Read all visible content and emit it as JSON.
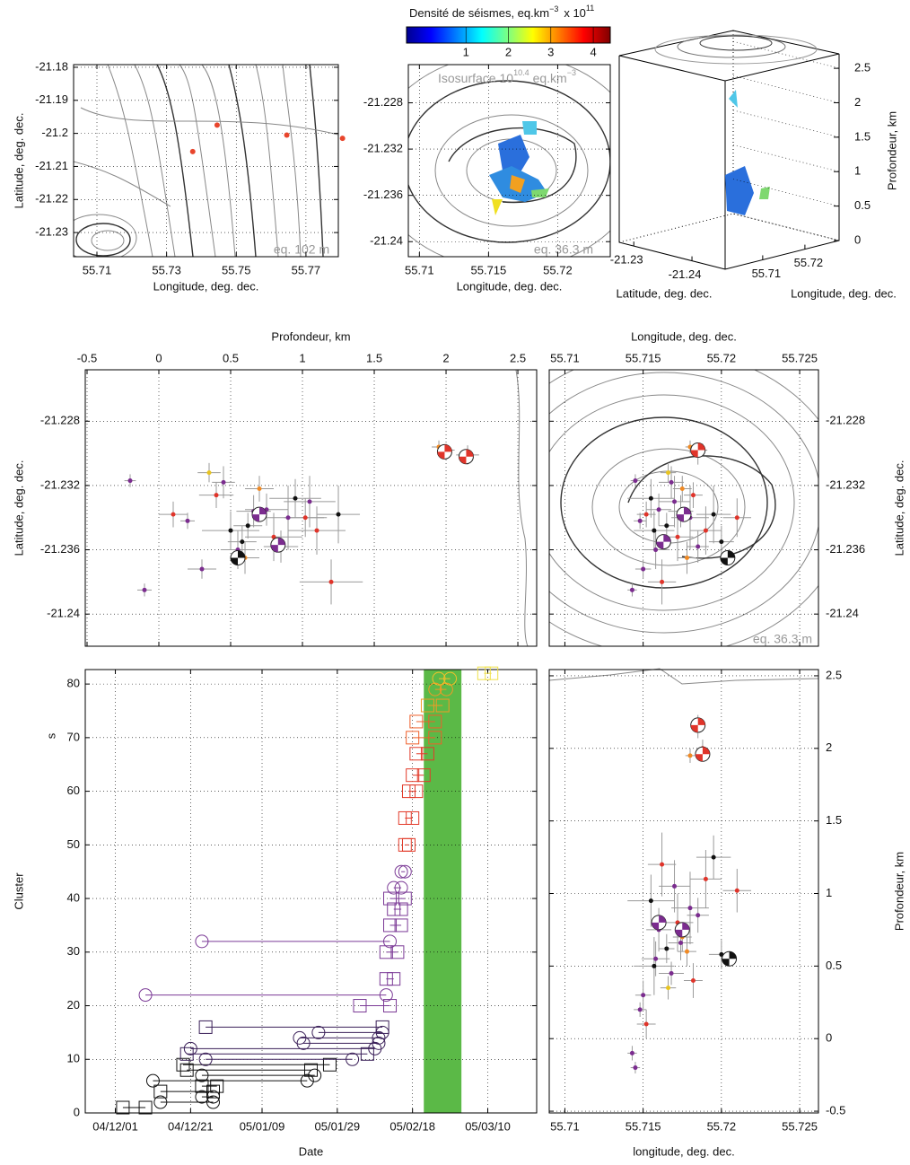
{
  "chart_data": [
    {
      "type": "map",
      "xlabel": "Longitude, deg. dec.",
      "ylabel": "Latitude, deg. dec.",
      "annotation": "eq. 102 m",
      "xlim": [
        55.7033,
        55.7793
      ],
      "ylim": [
        -21.2373,
        -21.1792
      ],
      "xticks": [
        55.71,
        55.73,
        55.75,
        55.77
      ],
      "yticks": [
        -21.18,
        -21.19,
        -21.2,
        -21.21,
        -21.22,
        -21.23
      ],
      "grid": true,
      "x": [
        55.7375,
        55.7445,
        55.7645,
        55.7805
      ],
      "values": [
        -21.2055,
        -21.1975,
        -21.2005,
        -21.2015
      ],
      "color": "#e8452c"
    },
    {
      "type": "density-map",
      "xlabel": "Longitude, deg. dec.",
      "annotation": "eq. 36.3 m",
      "iso_label": "Isosurface 10",
      "iso_exp": "10.4",
      "iso_unit": "eq.km",
      "iso_unit_exp": "−3",
      "xlim": [
        55.7092,
        55.7238
      ],
      "ylim": [
        -21.2413,
        -21.2247
      ],
      "xticks": [
        55.71,
        55.715,
        55.72
      ],
      "yticks": [
        -21.228,
        -21.232,
        -21.236,
        -21.24
      ],
      "grid": true,
      "colorbar": {
        "label": "Densité de séismes, eq.km",
        "label_exp": "−3",
        "multiplier": "x 10",
        "multiplier_exp": "11",
        "clim": [
          -0.4,
          4.4
        ],
        "ticks": [
          1,
          2,
          3,
          4
        ]
      }
    },
    {
      "type": "3d",
      "xlabel": "Latitude, deg. dec.",
      "ylabel": "Longitude, deg. dec.",
      "zlabel": "Profondeur, km",
      "xlim": [
        -21.2275,
        -21.2457
      ],
      "xticks": [
        -21.23,
        -21.24
      ],
      "ylim": [
        55.7011,
        55.7281
      ],
      "yticks": [
        55.71,
        55.72
      ],
      "zlim": [
        0,
        2.71
      ],
      "zticks": [
        0,
        0.5,
        1,
        1.5,
        2,
        2.5
      ]
    },
    {
      "type": "scatter",
      "xlabel": "Profondeur, km",
      "ylabel": "Latitude, deg. dec.",
      "xlim": [
        -0.5125,
        2.631
      ],
      "ylim": [
        -21.242,
        -21.2248
      ],
      "xticks": [
        -0.5,
        0,
        0.5,
        1,
        1.5,
        2,
        2.5
      ],
      "yticks": [
        -21.228,
        -21.232,
        -21.236,
        -21.24
      ],
      "grid": true,
      "x": [
        0.75,
        0.62,
        0.8,
        0.55,
        0.9,
        0.7,
        0.45,
        0.95,
        1.1,
        0.85,
        1.25,
        0.3,
        1.2,
        0.6,
        0.2,
        1.05,
        0.58,
        0.4,
        0.5,
        0.35,
        2.0,
        2.15,
        1.95,
        -0.1,
        -0.2,
        1.02,
        0.1,
        0.66
      ],
      "values": [
        -21.2335,
        -21.2345,
        -21.2352,
        -21.236,
        -21.234,
        -21.2322,
        -21.2318,
        -21.2328,
        -21.2348,
        -21.2358,
        -21.2338,
        -21.2372,
        -21.238,
        -21.2365,
        -21.2342,
        -21.233,
        -21.2355,
        -21.2326,
        -21.2348,
        -21.2312,
        -21.2298,
        -21.2301,
        -21.2296,
        -21.2385,
        -21.2317,
        -21.234,
        -21.2338,
        -21.2336
      ],
      "xerr": [
        0.15,
        0.1,
        0.2,
        0.12,
        0.25,
        0.1,
        0.08,
        0.18,
        0.2,
        0.12,
        0.15,
        0.1,
        0.22,
        0.1,
        0.05,
        0.18,
        0.1,
        0.12,
        0.2,
        0.08,
        0.06,
        0.08,
        0.05,
        0.05,
        0.04,
        0.15,
        0.1,
        0.12
      ],
      "yerr": [
        0.001,
        0.0008,
        0.0015,
        0.0012,
        0.002,
        0.0008,
        0.001,
        0.0012,
        0.0015,
        0.001,
        0.0018,
        0.0006,
        0.0014,
        0.001,
        0.0005,
        0.0016,
        0.001,
        0.0008,
        0.0012,
        0.0006,
        0.0004,
        0.0006,
        0.0004,
        0.0004,
        0.0004,
        0.0012,
        0.0008,
        0.001
      ],
      "colors": [
        "#7b2c8f",
        "#111111",
        "#e0342a",
        "#7b2c8f",
        "#7b2c8f",
        "#f08a24",
        "#7b2c8f",
        "#111111",
        "#e0342a",
        "#7b2c8f",
        "#111111",
        "#7b2c8f",
        "#e0342a",
        "#f08a24",
        "#7b2c8f",
        "#7b2c8f",
        "#111111",
        "#e0342a",
        "#111111",
        "#e8c420",
        "#e0342a",
        "#e0342a",
        "#f08a24",
        "#7b2c8f",
        "#7b2c8f",
        "#e0342a",
        "#e0342a",
        "#7b2c8f"
      ],
      "mechanisms": {
        "x": [
          0.55,
          0.7,
          0.83,
          1.99,
          2.14
        ],
        "y": [
          -21.2365,
          -21.2338,
          -21.2357,
          -21.2299,
          -21.2302
        ],
        "color": [
          "#111111",
          "#7b2c8f",
          "#7b2c8f",
          "#e0342a",
          "#e0342a"
        ]
      }
    },
    {
      "type": "scatter",
      "xlabel": "Longitude, deg. dec.",
      "ylabel": "Latitude, deg. dec.",
      "annotation": "eq. 36.3 m",
      "xlim": [
        55.709,
        55.7262
      ],
      "ylim": [
        -21.242,
        -21.2248
      ],
      "xticks": [
        55.71,
        55.715,
        55.72,
        55.725
      ],
      "yticks": [
        -21.228,
        -21.232,
        -21.236,
        -21.24
      ],
      "grid": true,
      "x": [
        55.716,
        55.7165,
        55.7172,
        55.7158,
        55.718,
        55.7175,
        55.7168,
        55.7155,
        55.719,
        55.7185,
        55.7195,
        55.715,
        55.7162,
        55.7178,
        55.7148,
        55.717,
        55.72,
        55.7182,
        55.7157,
        55.7166,
        55.7188,
        55.7185,
        55.718,
        55.7143,
        55.7145,
        55.721,
        55.7152,
        55.7174
      ],
      "values": [
        -21.2335,
        -21.2345,
        -21.2352,
        -21.236,
        -21.234,
        -21.2322,
        -21.2318,
        -21.2328,
        -21.2348,
        -21.2358,
        -21.2338,
        -21.2372,
        -21.238,
        -21.2365,
        -21.2342,
        -21.233,
        -21.2355,
        -21.2326,
        -21.2348,
        -21.2312,
        -21.2298,
        -21.2301,
        -21.2296,
        -21.2385,
        -21.2317,
        -21.234,
        -21.2338,
        -21.2336
      ],
      "xerr": [
        0.0008,
        0.0005,
        0.001,
        0.0009,
        0.0012,
        0.0006,
        0.0008,
        0.0015,
        0.001,
        0.0007,
        0.0011,
        0.0005,
        0.0009,
        0.0006,
        0.0004,
        0.001,
        0.0008,
        0.0006,
        0.0013,
        0.0005,
        0.0003,
        0.0004,
        0.0003,
        0.0003,
        0.0003,
        0.0009,
        0.0006,
        0.0008
      ],
      "yerr": [
        0.001,
        0.0008,
        0.0015,
        0.0012,
        0.002,
        0.0008,
        0.001,
        0.0012,
        0.0015,
        0.001,
        0.0018,
        0.0006,
        0.0014,
        0.001,
        0.0005,
        0.0016,
        0.001,
        0.0008,
        0.0012,
        0.0006,
        0.0004,
        0.0006,
        0.0004,
        0.0004,
        0.0004,
        0.0012,
        0.0008,
        0.001
      ],
      "colors": [
        "#7b2c8f",
        "#111111",
        "#e0342a",
        "#7b2c8f",
        "#7b2c8f",
        "#f08a24",
        "#7b2c8f",
        "#111111",
        "#e0342a",
        "#7b2c8f",
        "#111111",
        "#7b2c8f",
        "#e0342a",
        "#f08a24",
        "#7b2c8f",
        "#7b2c8f",
        "#111111",
        "#e0342a",
        "#111111",
        "#e8c420",
        "#e0342a",
        "#e0342a",
        "#f08a24",
        "#7b2c8f",
        "#7b2c8f",
        "#e0342a",
        "#e0342a",
        "#7b2c8f"
      ],
      "mechanisms": {
        "x": [
          55.7185,
          55.7176,
          55.7163,
          55.7204
        ],
        "y": [
          -21.2298,
          -21.2338,
          -21.2355,
          -21.2365
        ],
        "color": [
          "#e0342a",
          "#7b2c8f",
          "#7b2c8f",
          "#111111"
        ]
      }
    },
    {
      "type": "timeline",
      "xlabel": "Date",
      "ylabel": "Cluster",
      "yunit": "s",
      "xlim": [
        "2004-11-23",
        "2005-03-23"
      ],
      "xticks": [
        {
          "value": "2004-12-01",
          "label": "04/12/01"
        },
        {
          "value": "2004-12-21",
          "label": "04/12/21"
        },
        {
          "value": "2005-01-09",
          "label": "05/01/09"
        },
        {
          "value": "2005-01-29",
          "label": "05/01/29"
        },
        {
          "value": "2005-02-18",
          "label": "05/02/18"
        },
        {
          "value": "2005-03-10",
          "label": "05/03/10"
        }
      ],
      "ylim": [
        0,
        82.7
      ],
      "yticks": [
        0,
        10,
        20,
        30,
        40,
        50,
        60,
        70,
        80
      ],
      "grid": true,
      "band": [
        "2005-02-21",
        "2005-03-03"
      ],
      "band_color": "#5bb947",
      "clusters": {
        "y": [
          1,
          2,
          3,
          4,
          5,
          6,
          7,
          8,
          9,
          10,
          11,
          12,
          13,
          14,
          15,
          16,
          20,
          22,
          25,
          30,
          32,
          35,
          38,
          40,
          42,
          45,
          50,
          55,
          60,
          63,
          67,
          70,
          73,
          76,
          79,
          81,
          82
        ],
        "start": [
          "2004-12-03",
          "2004-12-13",
          "2004-12-24",
          "2004-12-13",
          "2004-12-24",
          "2004-12-11",
          "2004-12-24",
          "2004-12-20",
          "2004-12-19",
          "2004-12-25",
          "2004-12-20",
          "2004-12-21",
          "2005-01-20",
          "2005-01-19",
          "2005-01-24",
          "2004-12-25",
          "2005-02-04",
          "2004-12-09",
          "2005-02-11",
          "2005-02-11",
          "2004-12-24",
          "2005-02-12",
          "2005-02-13",
          "2005-02-12",
          "2005-02-13",
          "2005-02-15",
          "2005-02-16",
          "2005-02-16",
          "2005-02-17",
          "2005-02-18",
          "2005-02-19",
          "2005-02-18",
          "2005-02-19",
          "2005-02-22",
          "2005-02-24",
          "2005-02-25",
          "2005-03-09"
        ],
        "end": [
          "2004-12-09",
          "2004-12-27",
          "2004-12-27",
          "2004-12-27",
          "2004-12-28",
          "2005-01-21",
          "2005-01-23",
          "2005-01-22",
          "2005-01-27",
          "2005-02-02",
          "2005-02-06",
          "2005-02-08",
          "2005-02-09",
          "2005-02-09",
          "2005-02-10",
          "2005-02-10",
          "2005-02-12",
          "2005-02-11",
          "2005-02-13",
          "2005-02-14",
          "2005-02-12",
          "2005-02-15",
          "2005-02-15",
          "2005-02-16",
          "2005-02-15",
          "2005-02-16",
          "2005-02-17",
          "2005-02-18",
          "2005-02-19",
          "2005-02-21",
          "2005-02-22",
          "2005-02-24",
          "2005-02-24",
          "2005-02-26",
          "2005-02-27",
          "2005-02-28",
          "2005-03-11"
        ],
        "marker": [
          "square",
          "circle",
          "circle",
          "square",
          "square",
          "circle",
          "circle",
          "square",
          "square",
          "circle",
          "square",
          "circle",
          "circle",
          "circle",
          "circle",
          "square",
          "square",
          "circle",
          "square",
          "square",
          "circle",
          "square",
          "square",
          "square",
          "circle",
          "circle",
          "square",
          "square",
          "square",
          "square",
          "square",
          "square",
          "square",
          "square",
          "circle",
          "circle",
          "square"
        ],
        "color": [
          "#111111",
          "#111111",
          "#111111",
          "#111111",
          "#111111",
          "#111111",
          "#111111",
          "#111111",
          "#111111",
          "#3a1f58",
          "#3a1f58",
          "#3a1f58",
          "#3a1f58",
          "#3a1f58",
          "#3a1f58",
          "#3a1f58",
          "#7b3a96",
          "#7b3a96",
          "#7b3a96",
          "#7b3a96",
          "#7b3a96",
          "#7b3a96",
          "#7b3a96",
          "#7b3a96",
          "#7b3a96",
          "#7b3a96",
          "#e23b2a",
          "#e23b2a",
          "#e23b2a",
          "#e23b2a",
          "#e23b2a",
          "#ef5f2a",
          "#ef5f2a",
          "#f29a26",
          "#f29a26",
          "#f2c12a",
          "#efe04a"
        ]
      }
    },
    {
      "type": "scatter",
      "xlabel": "longitude, deg. dec.",
      "ylabel": "Profondeur, km",
      "xlim": [
        55.709,
        55.7262
      ],
      "ylim": [
        -0.512,
        2.543
      ],
      "xticks": [
        55.71,
        55.715,
        55.72,
        55.725
      ],
      "yticks": [
        -0.5,
        0,
        0.5,
        1,
        1.5,
        2,
        2.5
      ],
      "grid": true,
      "x": [
        55.716,
        55.7165,
        55.7172,
        55.7158,
        55.718,
        55.7175,
        55.7168,
        55.7155,
        55.719,
        55.7185,
        55.7195,
        55.715,
        55.7162,
        55.7178,
        55.7148,
        55.717,
        55.72,
        55.7182,
        55.7157,
        55.7166,
        55.7188,
        55.7185,
        55.718,
        55.7143,
        55.7145,
        55.721,
        55.7152,
        55.7174
      ],
      "values": [
        0.75,
        0.62,
        0.8,
        0.55,
        0.9,
        0.7,
        0.45,
        0.95,
        1.1,
        0.85,
        1.25,
        0.3,
        1.2,
        0.6,
        0.2,
        1.05,
        0.58,
        0.4,
        0.5,
        0.35,
        2.0,
        2.15,
        1.95,
        -0.1,
        -0.2,
        1.02,
        0.1,
        0.66
      ],
      "xerr": [
        0.0008,
        0.0005,
        0.001,
        0.0009,
        0.0012,
        0.0006,
        0.0008,
        0.0015,
        0.001,
        0.0007,
        0.0011,
        0.0005,
        0.0009,
        0.0006,
        0.0004,
        0.001,
        0.0008,
        0.0006,
        0.0013,
        0.0005,
        0.0003,
        0.0004,
        0.0003,
        0.0003,
        0.0003,
        0.0009,
        0.0006,
        0.0008
      ],
      "yerr": [
        0.15,
        0.1,
        0.2,
        0.12,
        0.25,
        0.1,
        0.08,
        0.18,
        0.2,
        0.12,
        0.15,
        0.1,
        0.22,
        0.1,
        0.05,
        0.18,
        0.1,
        0.12,
        0.2,
        0.08,
        0.06,
        0.08,
        0.05,
        0.05,
        0.04,
        0.15,
        0.1,
        0.12
      ],
      "colors": [
        "#7b2c8f",
        "#111111",
        "#e0342a",
        "#7b2c8f",
        "#7b2c8f",
        "#f08a24",
        "#7b2c8f",
        "#111111",
        "#e0342a",
        "#7b2c8f",
        "#111111",
        "#7b2c8f",
        "#e0342a",
        "#f08a24",
        "#7b2c8f",
        "#7b2c8f",
        "#111111",
        "#e0342a",
        "#111111",
        "#e8c420",
        "#e0342a",
        "#e0342a",
        "#f08a24",
        "#7b2c8f",
        "#7b2c8f",
        "#e0342a",
        "#e0342a",
        "#7b2c8f"
      ],
      "mechanisms": {
        "x": [
          55.7185,
          55.7188,
          55.716,
          55.7175,
          55.7205
        ],
        "y": [
          2.16,
          1.96,
          0.8,
          0.75,
          0.55
        ],
        "color": [
          "#e0342a",
          "#e0342a",
          "#7b2c8f",
          "#7b2c8f",
          "#111111"
        ]
      }
    }
  ]
}
